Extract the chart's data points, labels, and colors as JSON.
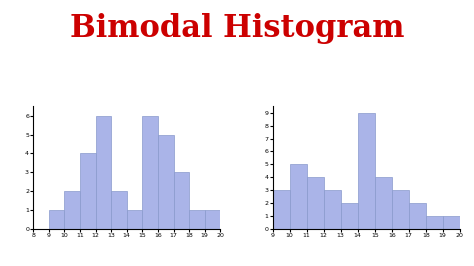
{
  "title": "Bimodal Histogram",
  "title_color": "#cc0000",
  "title_fontsize": 22,
  "title_fontweight": "bold",
  "bar_color": "#aab4e8",
  "bar_edgecolor": "#8899cc",
  "background_color": "#ffffff",
  "hist1": {
    "bin_edges": [
      8,
      9,
      10,
      11,
      12,
      13,
      14,
      15,
      16,
      17,
      18,
      19,
      20
    ],
    "heights": [
      0,
      1,
      2,
      4,
      6,
      2,
      1,
      6,
      5,
      3,
      1,
      1
    ],
    "xlim": [
      8,
      20
    ],
    "ylim": [
      0,
      6.5
    ],
    "yticks": [
      0,
      1,
      2,
      3,
      4,
      5,
      6
    ],
    "xticks": [
      8,
      9,
      10,
      11,
      12,
      13,
      14,
      15,
      16,
      17,
      18,
      19,
      20
    ]
  },
  "hist2": {
    "bin_edges": [
      9,
      10,
      11,
      12,
      13,
      14,
      15,
      16,
      17,
      18,
      19,
      20
    ],
    "heights": [
      3,
      5,
      4,
      3,
      2,
      9,
      4,
      3,
      2,
      1,
      1
    ],
    "xlim": [
      9,
      20
    ],
    "ylim": [
      0,
      9.5
    ],
    "yticks": [
      0,
      1,
      2,
      3,
      4,
      5,
      6,
      7,
      8,
      9
    ],
    "xticks": [
      9,
      10,
      11,
      12,
      13,
      14,
      15,
      16,
      17,
      18,
      19,
      20
    ]
  }
}
